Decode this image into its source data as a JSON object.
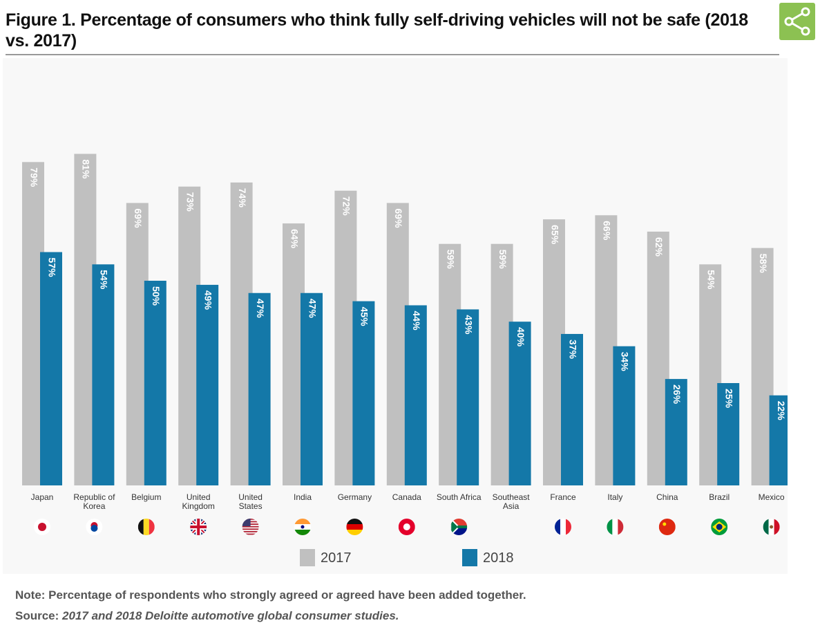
{
  "title": "Figure 1. Percentage of consumers who think fully self-driving vehicles will not be safe (2018 vs. 2017)",
  "share_icon": "share-icon",
  "note": "Note: Percentage of respondents who strongly agreed or agreed have been added together.",
  "source_label": "Source:",
  "source_text": "2017 and 2018 Deloitte automotive global consumer studies.",
  "chart_data": {
    "type": "bar",
    "categories": [
      "Japan",
      "Republic of Korea",
      "Belgium",
      "United Kingdom",
      "United States",
      "India",
      "Germany",
      "Canada",
      "South Africa",
      "Southeast Asia",
      "France",
      "Italy",
      "China",
      "Brazil",
      "Mexico"
    ],
    "category_lines": [
      [
        "Japan"
      ],
      [
        "Republic of",
        "Korea"
      ],
      [
        "Belgium"
      ],
      [
        "United",
        "Kingdom"
      ],
      [
        "United",
        "States"
      ],
      [
        "India"
      ],
      [
        "Germany"
      ],
      [
        "Canada"
      ],
      [
        "South Africa"
      ],
      [
        "Southeast",
        "Asia"
      ],
      [
        "France"
      ],
      [
        "Italy"
      ],
      [
        "China"
      ],
      [
        "Brazil"
      ],
      [
        "Mexico"
      ]
    ],
    "flags": [
      "jp",
      "kr",
      "be",
      "gb",
      "us",
      "in",
      "de",
      "ca",
      "za",
      "",
      "fr",
      "it",
      "cn",
      "br",
      "mx"
    ],
    "series": [
      {
        "name": "2017",
        "color": "#c0c0c0",
        "values": [
          79,
          81,
          69,
          73,
          74,
          64,
          72,
          69,
          59,
          59,
          65,
          66,
          62,
          54,
          58
        ]
      },
      {
        "name": "2018",
        "color": "#1478a8",
        "values": [
          57,
          54,
          50,
          49,
          47,
          47,
          45,
          44,
          43,
          40,
          37,
          34,
          26,
          25,
          22
        ]
      }
    ],
    "value_suffix": "%",
    "ylim": [
      0,
      100
    ],
    "grid": false,
    "legend_position": "bottom-center"
  }
}
